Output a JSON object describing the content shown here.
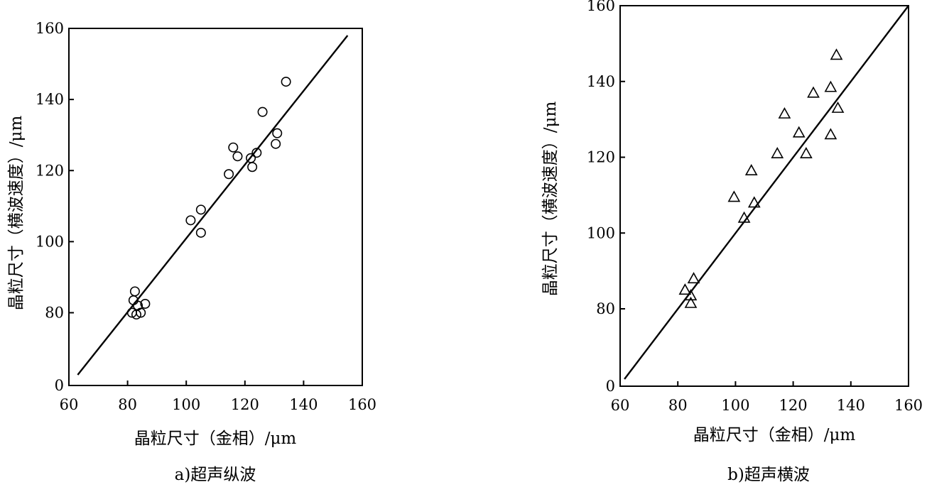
{
  "chart_data": [
    {
      "type": "scatter",
      "caption": "a)超声纵波",
      "xlabel": "晶粒尺寸（金相）/μm",
      "ylabel": "晶粒尺寸（横波速度）/μm",
      "xlim": [
        60,
        160
      ],
      "ylim": [
        0,
        160
      ],
      "xticks": [
        60,
        80,
        100,
        120,
        140,
        160
      ],
      "yticks": [
        0,
        80,
        100,
        120,
        140,
        160
      ],
      "y_axis_break": "0-70",
      "marker": "circle",
      "points": [
        [
          82.5,
          86
        ],
        [
          82,
          83.5
        ],
        [
          83.5,
          82
        ],
        [
          86,
          82.5
        ],
        [
          81.5,
          80
        ],
        [
          84.5,
          80
        ],
        [
          83,
          78
        ],
        [
          101.5,
          106
        ],
        [
          105,
          109
        ],
        [
          105,
          102.5
        ],
        [
          114.5,
          119
        ],
        [
          116,
          126.5
        ],
        [
          117.5,
          124
        ],
        [
          122,
          123.5
        ],
        [
          122.5,
          121
        ],
        [
          124,
          125
        ],
        [
          126,
          136.5
        ],
        [
          130.5,
          127.5
        ],
        [
          131,
          130.5
        ],
        [
          134,
          145
        ]
      ],
      "fit_line": {
        "x": [
          63,
          155
        ],
        "y": [
          63,
          158
        ]
      }
    },
    {
      "type": "scatter",
      "caption": "b)超声横波",
      "xlabel": "晶粒尺寸（金相）/μm",
      "ylabel": "晶粒尺寸（横波速度）/μm",
      "xlim": [
        60,
        160
      ],
      "ylim": [
        0,
        160
      ],
      "xticks": [
        60,
        80,
        100,
        120,
        140,
        160
      ],
      "yticks": [
        0,
        80,
        100,
        120,
        140,
        160
      ],
      "y_axis_break": "0-70",
      "marker": "triangle",
      "points": [
        [
          82.5,
          85
        ],
        [
          84.5,
          83.5
        ],
        [
          85.5,
          88
        ],
        [
          84.5,
          81.5
        ],
        [
          99.5,
          109.5
        ],
        [
          103,
          104
        ],
        [
          105.5,
          116.5
        ],
        [
          106.5,
          108
        ],
        [
          114.5,
          121
        ],
        [
          117,
          131.5
        ],
        [
          122,
          126.5
        ],
        [
          124.5,
          121
        ],
        [
          127,
          137
        ],
        [
          133,
          138.5
        ],
        [
          133,
          126
        ],
        [
          135,
          147
        ],
        [
          135.5,
          133
        ]
      ],
      "fit_line": {
        "x": [
          61.5,
          160
        ],
        "y": [
          61.5,
          160
        ]
      }
    }
  ]
}
